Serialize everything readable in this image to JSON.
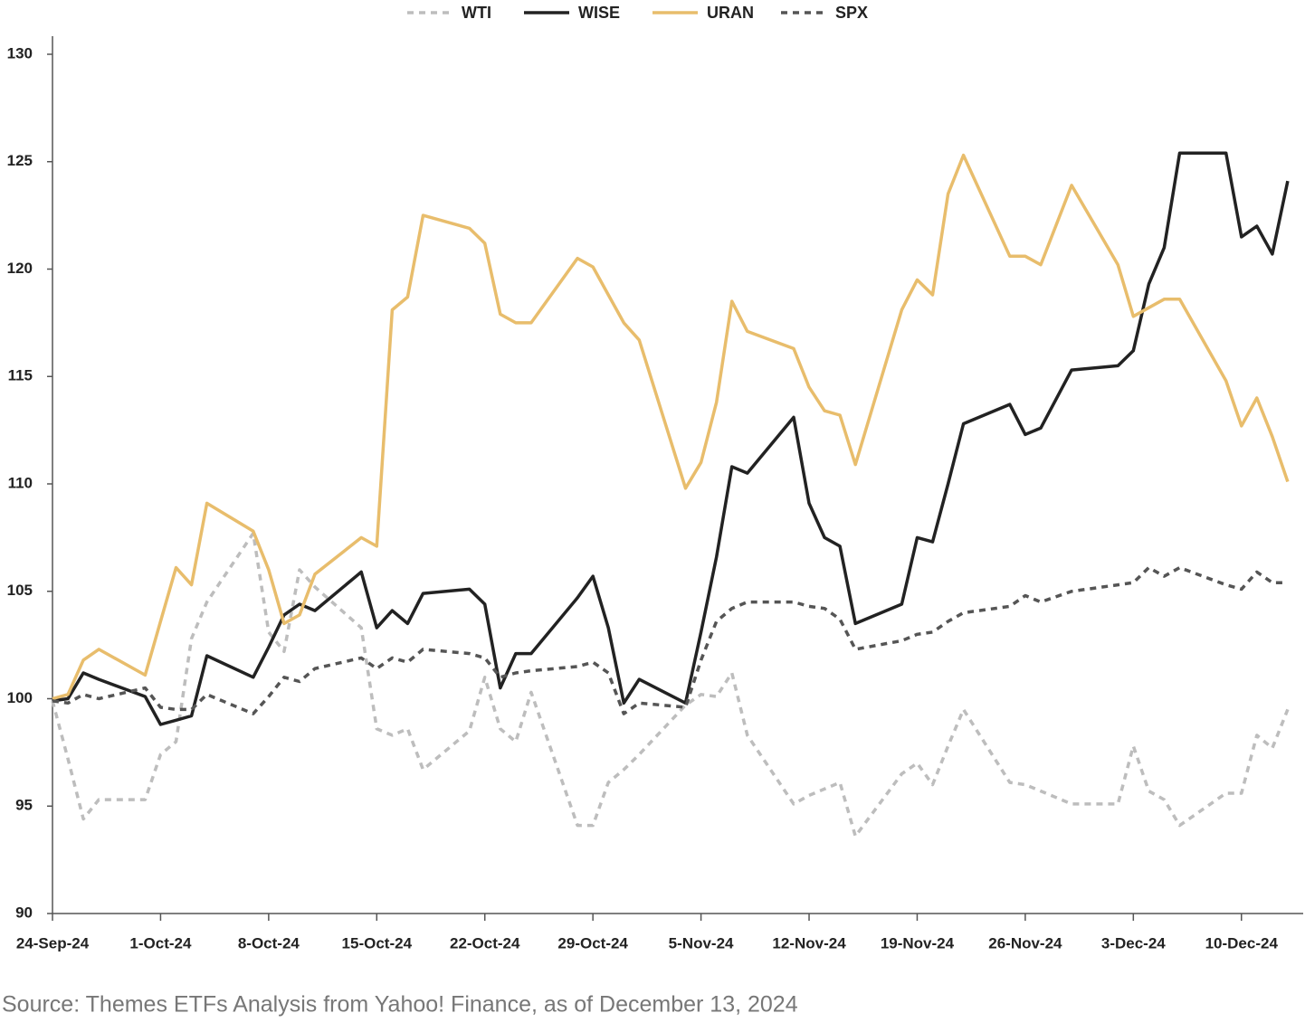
{
  "chart_data": {
    "type": "line",
    "source": "Source: Themes ETFs Analysis from Yahoo! Finance, as of December 13, 2024",
    "x": [
      "2024-09-24",
      "2024-09-25",
      "2024-09-26",
      "2024-09-27",
      "2024-09-30",
      "2024-10-01",
      "2024-10-02",
      "2024-10-03",
      "2024-10-04",
      "2024-10-07",
      "2024-10-08",
      "2024-10-09",
      "2024-10-10",
      "2024-10-11",
      "2024-10-14",
      "2024-10-15",
      "2024-10-16",
      "2024-10-17",
      "2024-10-18",
      "2024-10-21",
      "2024-10-22",
      "2024-10-23",
      "2024-10-24",
      "2024-10-25",
      "2024-10-28",
      "2024-10-29",
      "2024-10-30",
      "2024-10-31",
      "2024-11-01",
      "2024-11-04",
      "2024-11-05",
      "2024-11-06",
      "2024-11-07",
      "2024-11-08",
      "2024-11-11",
      "2024-11-12",
      "2024-11-13",
      "2024-11-14",
      "2024-11-15",
      "2024-11-18",
      "2024-11-19",
      "2024-11-20",
      "2024-11-21",
      "2024-11-22",
      "2024-11-25",
      "2024-11-26",
      "2024-11-27",
      "2024-11-29",
      "2024-12-02",
      "2024-12-03",
      "2024-12-04",
      "2024-12-05",
      "2024-12-06",
      "2024-12-09",
      "2024-12-10",
      "2024-12-11",
      "2024-12-12",
      "2024-12-13"
    ],
    "series": [
      {
        "name": "WTI",
        "color": "#bdbdbd",
        "dashed": true,
        "values": [
          99.9,
          97.2,
          94.4,
          95.3,
          95.3,
          97.4,
          98,
          102.8,
          104.5,
          107.7,
          103.1,
          102.2,
          106,
          105.2,
          103.3,
          98.6,
          98.3,
          98.6,
          96.7,
          98.5,
          101,
          98.6,
          98,
          100.3,
          94.1,
          94.1,
          96.1,
          96.7,
          97.4,
          99.7,
          100.2,
          100.1,
          101.2,
          98.3,
          95.1,
          95.5,
          95.8,
          96.1,
          93.6,
          96.5,
          97,
          96,
          97.8,
          99.5,
          96.1,
          96,
          95.7,
          95.1,
          95.1,
          97.8,
          95.7,
          95.3,
          94.1,
          95.6,
          95.6,
          98.3,
          97.7,
          99.5
        ]
      },
      {
        "name": "WISE",
        "color": "#222222",
        "dashed": false,
        "values": [
          99.9,
          100,
          101.2,
          100.9,
          100.1,
          98.8,
          99,
          99.2,
          102,
          101,
          102.4,
          103.9,
          104.4,
          104.1,
          105.9,
          103.3,
          104.1,
          103.5,
          104.9,
          105.1,
          104.4,
          100.5,
          102.1,
          102.1,
          104.7,
          105.7,
          103.3,
          99.8,
          100.9,
          99.8,
          103.1,
          106.6,
          110.8,
          110.5,
          113.1,
          109.1,
          107.5,
          107.1,
          103.5,
          104.4,
          107.5,
          107.3,
          110,
          112.8,
          113.7,
          112.3,
          112.6,
          115.3,
          115.5,
          116.2,
          119.3,
          121,
          125.4,
          125.4,
          121.5,
          122,
          120.7,
          124.1
        ]
      },
      {
        "name": "URAN",
        "color": "#e8bd6c",
        "dashed": false,
        "values": [
          100,
          100.2,
          101.8,
          102.3,
          101.1,
          103.6,
          106.1,
          105.3,
          109.1,
          107.8,
          106,
          103.5,
          103.9,
          105.8,
          107.5,
          107.1,
          118.1,
          118.7,
          122.5,
          121.9,
          121.2,
          117.9,
          117.5,
          117.5,
          120.5,
          120.1,
          118.8,
          117.5,
          116.7,
          109.8,
          111,
          113.8,
          118.5,
          117.1,
          116.3,
          114.5,
          113.4,
          113.2,
          110.9,
          118.1,
          119.5,
          118.8,
          123.5,
          125.3,
          120.6,
          120.6,
          120.2,
          123.9,
          120.2,
          117.8,
          118.2,
          118.6,
          118.6,
          114.8,
          112.7,
          114,
          112.2,
          110.1
        ]
      },
      {
        "name": "SPX",
        "color": "#555555",
        "dashed": true,
        "values": [
          99.9,
          99.8,
          100.2,
          100,
          100.5,
          99.6,
          99.5,
          99.5,
          100.2,
          99.3,
          100.1,
          101,
          100.8,
          101.4,
          101.9,
          101.4,
          101.9,
          101.7,
          102.3,
          102.1,
          101.9,
          101,
          101.2,
          101.3,
          101.5,
          101.7,
          101.2,
          99.3,
          99.8,
          99.6,
          101.8,
          103.6,
          104.2,
          104.5,
          104.5,
          104.3,
          104.2,
          103.7,
          102.3,
          102.7,
          103,
          103.1,
          103.6,
          104,
          104.3,
          104.8,
          104.5,
          105,
          105.3,
          105.4,
          106.1,
          105.7,
          106.1,
          105.3,
          105.1,
          105.9,
          105.4,
          105.4
        ]
      }
    ],
    "xlim": [
      "2024-09-24",
      "2024-12-14"
    ],
    "xticks": [
      {
        "value": "2024-09-24",
        "label": "24-Sep-24"
      },
      {
        "value": "2024-10-01",
        "label": "1-Oct-24"
      },
      {
        "value": "2024-10-08",
        "label": "8-Oct-24"
      },
      {
        "value": "2024-10-15",
        "label": "15-Oct-24"
      },
      {
        "value": "2024-10-22",
        "label": "22-Oct-24"
      },
      {
        "value": "2024-10-29",
        "label": "29-Oct-24"
      },
      {
        "value": "2024-11-05",
        "label": "5-Nov-24"
      },
      {
        "value": "2024-11-12",
        "label": "12-Nov-24"
      },
      {
        "value": "2024-11-19",
        "label": "19-Nov-24"
      },
      {
        "value": "2024-11-26",
        "label": "26-Nov-24"
      },
      {
        "value": "2024-12-03",
        "label": "3-Dec-24"
      },
      {
        "value": "2024-12-10",
        "label": "10-Dec-24"
      }
    ],
    "ylim": [
      90,
      130
    ],
    "yticks": [
      90,
      95,
      100,
      105,
      110,
      115,
      120,
      125,
      130
    ],
    "grid": false,
    "legend": "top"
  }
}
